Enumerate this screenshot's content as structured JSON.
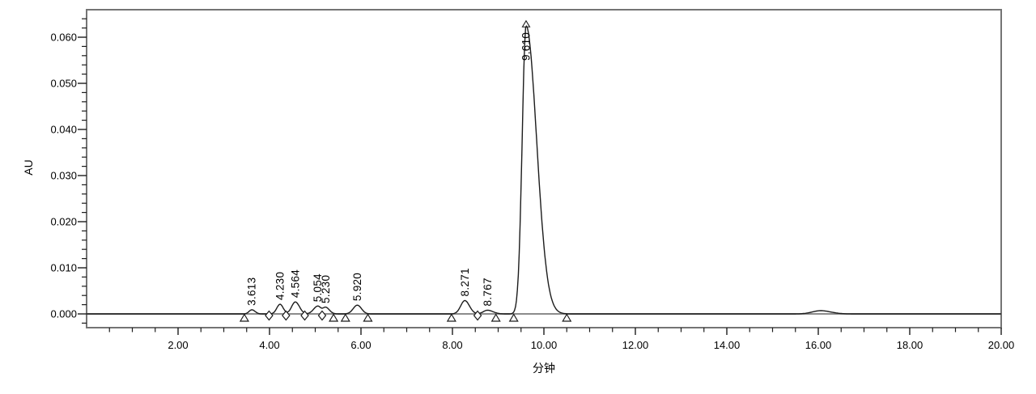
{
  "chart_data": {
    "type": "line",
    "title": "",
    "xlabel": "分钟",
    "ylabel": "AU",
    "xlim": [
      0,
      20
    ],
    "ylim": [
      -0.003,
      0.066
    ],
    "grid": false,
    "legend": null,
    "x_ticks": {
      "major": [
        2,
        4,
        6,
        8,
        10,
        12,
        14,
        16,
        18,
        20
      ],
      "labels": [
        "2.00",
        "4.00",
        "6.00",
        "8.00",
        "10.00",
        "12.00",
        "14.00",
        "16.00",
        "18.00",
        "20.00"
      ],
      "minor_step": 0.5
    },
    "y_ticks": {
      "major": [
        0.0,
        0.01,
        0.02,
        0.03,
        0.04,
        0.05,
        0.06
      ],
      "labels": [
        "0.000",
        "0.010",
        "0.020",
        "0.030",
        "0.040",
        "0.050",
        "0.060"
      ],
      "minor_step": 0.002,
      "minor_range": [
        -0.002,
        0.064
      ]
    },
    "baseline_au": 0.0,
    "peaks": [
      {
        "rt": 3.613,
        "label": "3.613",
        "height_au": 0.0009,
        "sigma_left": 0.06,
        "sigma_right": 0.07
      },
      {
        "rt": 4.23,
        "label": "4.230",
        "height_au": 0.0021,
        "sigma_left": 0.07,
        "sigma_right": 0.07
      },
      {
        "rt": 4.564,
        "label": "4.564",
        "height_au": 0.0026,
        "sigma_left": 0.08,
        "sigma_right": 0.09
      },
      {
        "rt": 5.054,
        "label": "5.054",
        "height_au": 0.0017,
        "sigma_left": 0.09,
        "sigma_right": 0.07
      },
      {
        "rt": 5.23,
        "label": "5.230",
        "height_au": 0.0014,
        "sigma_left": 0.06,
        "sigma_right": 0.08
      },
      {
        "rt": 5.92,
        "label": "5.920",
        "height_au": 0.0019,
        "sigma_left": 0.09,
        "sigma_right": 0.09
      },
      {
        "rt": 8.271,
        "label": "8.271",
        "height_au": 0.0029,
        "sigma_left": 0.09,
        "sigma_right": 0.1
      },
      {
        "rt": 8.767,
        "label": "8.767",
        "height_au": 0.0008,
        "sigma_left": 0.09,
        "sigma_right": 0.12
      },
      {
        "rt": 9.61,
        "label": "9.610",
        "height_au": 0.0625,
        "sigma_left": 0.085,
        "sigma_right": 0.23,
        "major_peak": true
      }
    ],
    "unlabeled_features": [
      {
        "rt": 16.05,
        "height_au": 0.0007,
        "sigma_left": 0.18,
        "sigma_right": 0.22
      }
    ],
    "integration_markers": {
      "start_end_triangles_t": [
        3.45,
        5.4,
        5.66,
        6.15,
        7.98,
        8.95,
        9.34,
        10.5
      ],
      "valley_diamonds_t": [
        3.99,
        4.36,
        4.77,
        5.15,
        8.55
      ],
      "apex_triangle_t": 9.61
    },
    "colors": {
      "trace": "#1c1c1c",
      "integration_baseline": "#8c8c8c",
      "plot_border": "#747474",
      "tick": "#1c1c1c",
      "text": "#000000",
      "background": "#ffffff"
    }
  }
}
